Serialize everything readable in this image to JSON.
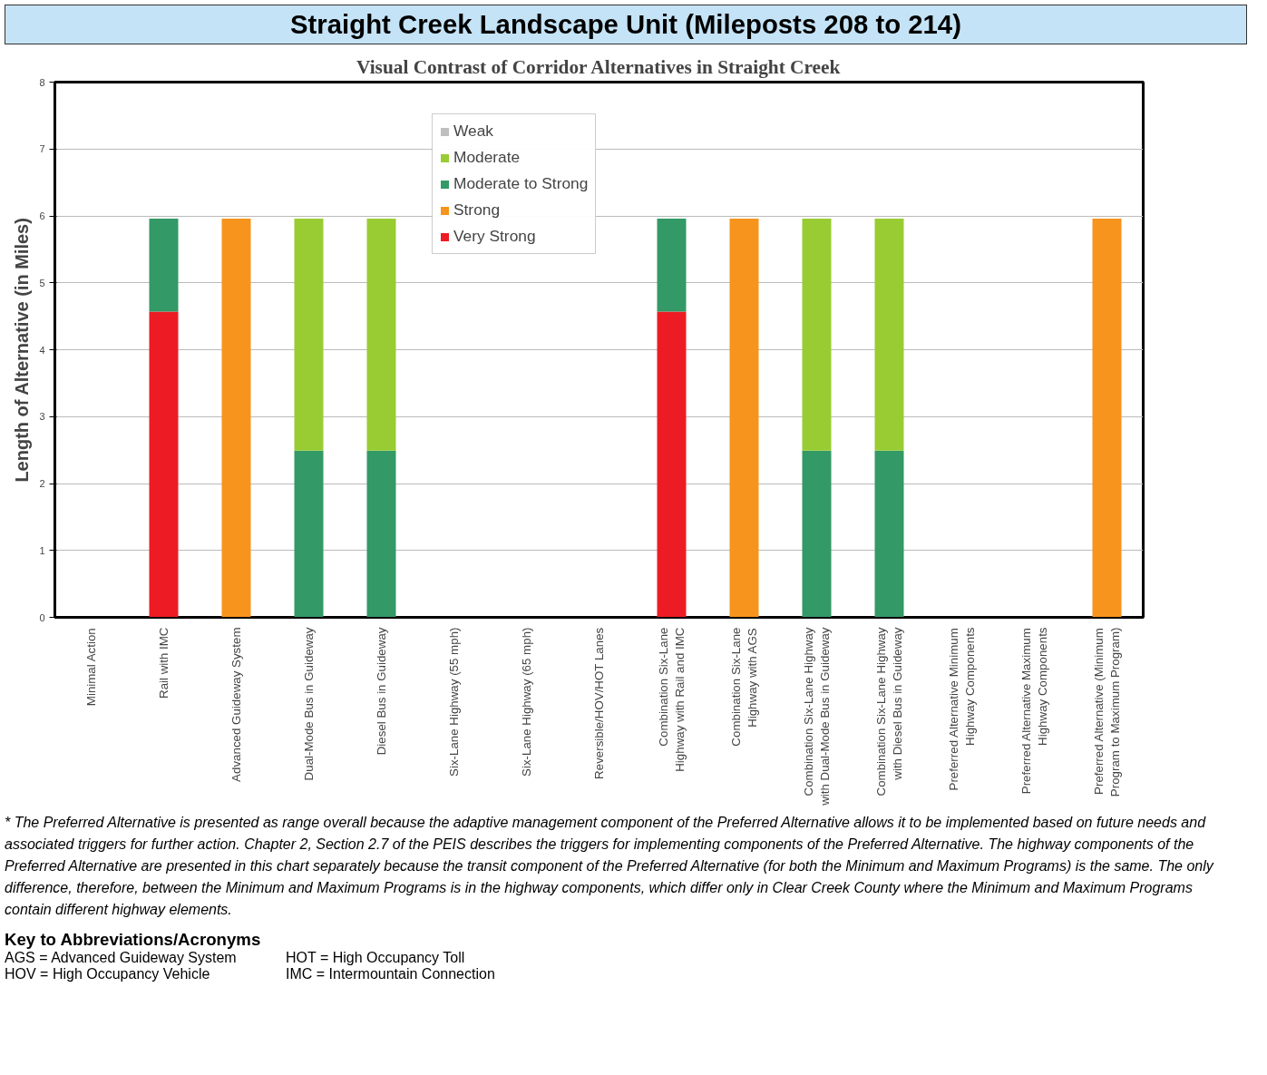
{
  "chart_data": {
    "type": "bar",
    "stacked": true,
    "title": "Straight Creek Landscape Unit (Mileposts 208 to 214)",
    "subtitle": "Visual Contrast of Corridor Alternatives in Straight Creek",
    "ylabel": "Length of Alternative (in Miles)",
    "categories": [
      "Minimal Action",
      "Rail with IMC",
      "Advanced Guideway System",
      "Dual-Mode Bus in Guideway",
      "Diesel Bus in Guideway",
      "Six-Lane Highway (55 mph)",
      "Six-Lane Highway (65 mph)",
      "Reversible/HOV/HOT Lanes",
      "Combination Six-Lane\nHighway with Rail and IMC",
      "Combination Six-Lane\nHighway with AGS",
      "Combination Six-Lane Highway\nwith Dual-Mode Bus in Guideway",
      "Combination Six-Lane Highway\nwith Diesel Bus in Guideway",
      "Preferred Alternative Minimum\nHighway Components",
      "Preferred Alternative Maximum\nHighway Components",
      "Preferred Alternative (Minimum\nProgram to Maximum Program)"
    ],
    "series": [
      {
        "name": "Very Strong",
        "color": "#ed1c24",
        "values": [
          0,
          4.57,
          0,
          0,
          0,
          0,
          0,
          0,
          4.57,
          0,
          0,
          0,
          0,
          0,
          0
        ]
      },
      {
        "name": "Strong",
        "color": "#f7941d",
        "values": [
          0,
          0,
          5.96,
          0,
          0,
          0,
          0,
          0,
          0,
          5.96,
          0,
          0,
          0,
          0,
          5.96
        ]
      },
      {
        "name": "Moderate to Strong",
        "color": "#339966",
        "values": [
          0,
          1.39,
          0,
          2.49,
          2.49,
          0,
          0,
          0,
          1.39,
          0,
          2.49,
          2.49,
          0,
          0,
          0
        ]
      },
      {
        "name": "Moderate",
        "color": "#99cc33",
        "values": [
          0,
          0,
          0,
          3.47,
          3.47,
          0,
          0,
          0,
          0,
          0,
          3.47,
          3.47,
          0,
          0,
          0
        ]
      },
      {
        "name": "Weak",
        "color": "#bfbfbf",
        "values": [
          0,
          0,
          0,
          0,
          0,
          0,
          0,
          0,
          0,
          0,
          0,
          0,
          0,
          0,
          0
        ]
      }
    ],
    "ylim": [
      0,
      8
    ],
    "yticks": [
      0,
      1,
      2,
      3,
      4,
      5,
      6,
      7,
      8
    ],
    "grid": "y",
    "legend": "top",
    "annotations": [
      "* The Preferred Alternative is presented as range overall because the adaptive management component of the Preferred Alternative allows it to be implemented based on future needs and associated triggers for further action. Chapter 2, Section 2.7 of the PEIS describes the triggers for implementing components of the Preferred Alternative. The highway components of the Preferred Alternative are presented in this chart separately because the transit component of the Preferred Alternative (for both the Minimum and Maximum Programs) is the same.  The only difference, therefore, between the Minimum and Maximum Programs is in the highway components, which differ only in Clear Creek County where the Minimum and Maximum Programs contain different highway elements.",
      "Key to Abbreviations/Acronyms",
      "AGS = Advanced Guideway System",
      "HOT = High Occupancy Toll",
      "HOV = High Occupancy Vehicle",
      "IMC = Intermountain Connection"
    ]
  }
}
